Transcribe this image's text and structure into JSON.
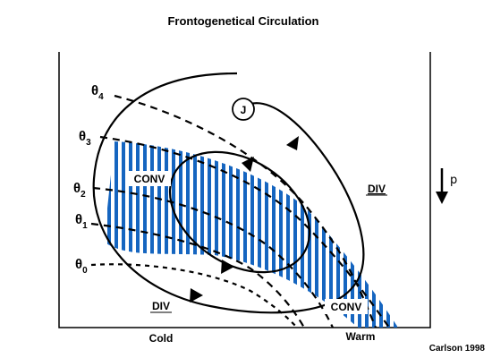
{
  "title": "Frontogenetical Circulation",
  "credit": "Carlson 1998",
  "axis": {
    "x_left": "Cold",
    "x_right": "Warm",
    "vertical": "p"
  },
  "isentropes": [
    {
      "symbol": "θ",
      "subscript": "4"
    },
    {
      "symbol": "θ",
      "subscript": "3"
    },
    {
      "symbol": "θ",
      "subscript": "2"
    },
    {
      "symbol": "θ",
      "subscript": "1"
    },
    {
      "symbol": "θ",
      "subscript": "0"
    }
  ],
  "jet_label": "J",
  "region_labels": {
    "conv_upper": "CONV",
    "div_upper": "DIV",
    "div_lower": "DIV",
    "conv_lower": "CONV"
  },
  "colors": {
    "frontal_zone": "#1565c0",
    "lines": "#000000",
    "background": "#ffffff"
  }
}
